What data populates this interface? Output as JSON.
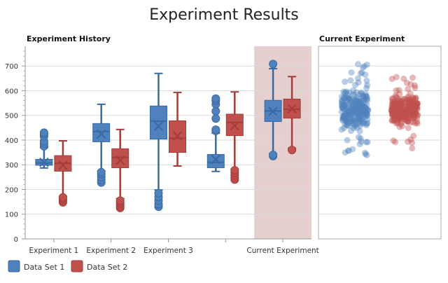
{
  "chart_data": [
    {
      "type": "box",
      "title": "Experiment History",
      "ylim": [
        0,
        780
      ],
      "yticks": [
        0,
        100,
        200,
        300,
        400,
        500,
        600,
        700
      ],
      "grid": true,
      "categories": [
        "Experiment 1",
        "Experiment 2",
        "Experiment 3",
        "",
        "Current Experiment"
      ],
      "highlighted_category": "Current Experiment",
      "highlight_color": "#e6cfcf",
      "series": [
        {
          "name": "Data Set 1",
          "color": "#4f81bd",
          "boxes": [
            {
              "whisker_low": 287,
              "q1": 298,
              "median": 307,
              "q3": 322,
              "whisker_high": 370,
              "mean": 310,
              "outliers": [
                375,
                385,
                395,
                415,
                425,
                430
              ]
            },
            {
              "whisker_low": 275,
              "q1": 393,
              "median": 435,
              "q3": 467,
              "whisker_high": 545,
              "mean": 424,
              "outliers": [
                228,
                238,
                250,
                262,
                270
              ]
            },
            {
              "whisker_low": 198,
              "q1": 404,
              "median": 477,
              "q3": 538,
              "whisker_high": 670,
              "mean": 456,
              "outliers": [
                130,
                140,
                155,
                170,
                185
              ]
            },
            {
              "whisker_low": 273,
              "q1": 288,
              "median": 310,
              "q3": 342,
              "whisker_high": 428,
              "mean": 322,
              "outliers": [
                437,
                442,
                487,
                517,
                545,
                560,
                568
              ]
            },
            {
              "whisker_low": 344,
              "q1": 475,
              "median": 518,
              "q3": 561,
              "whisker_high": 689,
              "mean": 516,
              "outliers": [
                335,
                340,
                708
              ]
            }
          ]
        },
        {
          "name": "Data Set 2",
          "color": "#c0504d",
          "boxes": [
            {
              "whisker_low": 172,
              "q1": 274,
              "median": 306,
              "q3": 337,
              "whisker_high": 397,
              "mean": 298,
              "outliers": [
                148,
                155,
                162,
                168
              ]
            },
            {
              "whisker_low": 163,
              "q1": 288,
              "median": 330,
              "q3": 365,
              "whisker_high": 443,
              "mean": 318,
              "outliers": [
                125,
                132,
                140,
                148,
                155
              ]
            },
            {
              "whisker_low": 295,
              "q1": 350,
              "median": 407,
              "q3": 478,
              "whisker_high": 593,
              "mean": 417,
              "outliers": []
            },
            {
              "whisker_low": 282,
              "q1": 418,
              "median": 472,
              "q3": 505,
              "whisker_high": 595,
              "mean": 458,
              "outliers": [
                240,
                248,
                258,
                268,
                278
              ]
            },
            {
              "whisker_low": 367,
              "q1": 489,
              "median": 524,
              "q3": 566,
              "whisker_high": 657,
              "mean": 527,
              "outliers": [
                360
              ]
            }
          ]
        }
      ]
    },
    {
      "type": "scatter",
      "title": "Current Experiment",
      "ylim": [
        0,
        780
      ],
      "grid": true,
      "series": [
        {
          "name": "Data Set 1",
          "color": "#4f81bd",
          "range": [
            335,
            708
          ],
          "core": [
            420,
            620
          ]
        },
        {
          "name": "Data Set 2",
          "color": "#c0504d",
          "range": [
            360,
            657
          ],
          "core": [
            440,
            600
          ]
        }
      ]
    }
  ],
  "title": "Experiment Results",
  "legend": [
    {
      "label": "Data Set 1",
      "color": "#4f81bd"
    },
    {
      "label": "Data Set 2",
      "color": "#c0504d"
    }
  ]
}
